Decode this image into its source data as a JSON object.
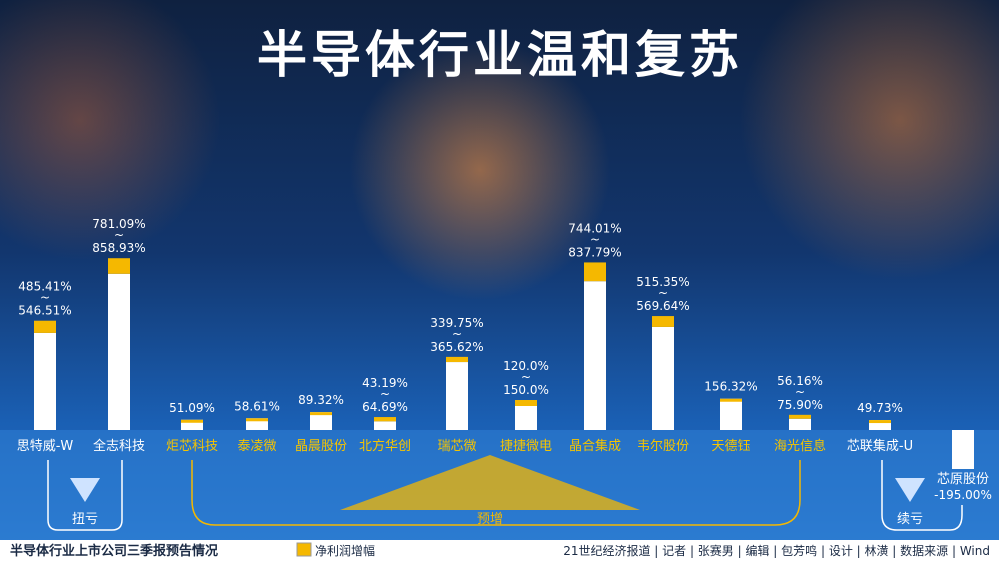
{
  "title": "半导体行业温和复苏",
  "subtitle": "半导体行业上市公司三季报预告情况",
  "credits": "21世纪经济报道 | 记者 | 张赛男 | 编辑 | 包芳鸣 | 设计 | 林潢 | 数据来源 | Wind",
  "groups": [
    "扭亏",
    "预增",
    "续亏"
  ],
  "chart_data": {
    "type": "range-bar",
    "categories": [
      "思特威-W",
      "全志科技",
      "炬芯科技",
      "泰凌微",
      "晶晨股份",
      "北方华创",
      "瑞芯微",
      "捷捷微电",
      "晶合集成",
      "韦尔股份",
      "天德钰",
      "海光信息",
      "芯联集成-U",
      "芯原股份"
    ],
    "series": [
      {
        "name": "净利润增幅",
        "color": "#f5b800",
        "values": [
          485.41,
          781.09,
          51.09,
          58.61,
          89.32,
          43.19,
          339.75,
          120.0,
          744.01,
          515.35,
          156.32,
          56.16,
          49.73,
          -195.0
        ],
        "value_labels": [
          "485.41%",
          "781.09%",
          "51.09%",
          "58.61%",
          "89.32%",
          "43.19%",
          "339.75%",
          "120.0%",
          "744.01%",
          "515.35%",
          "156.32%",
          "56.16%",
          "49.73%",
          "-195.00%"
        ],
        "high_values": [
          546.51,
          858.93,
          null,
          null,
          null,
          64.69,
          365.62,
          150.0,
          837.79,
          569.64,
          null,
          75.9,
          null,
          null
        ],
        "high_value_labels": [
          "546.51%",
          "858.93%",
          null,
          null,
          null,
          "64.69%",
          "365.62%",
          "150.0%",
          "837.79%",
          "569.64%",
          null,
          "75.90%",
          null,
          null
        ]
      }
    ]
  }
}
